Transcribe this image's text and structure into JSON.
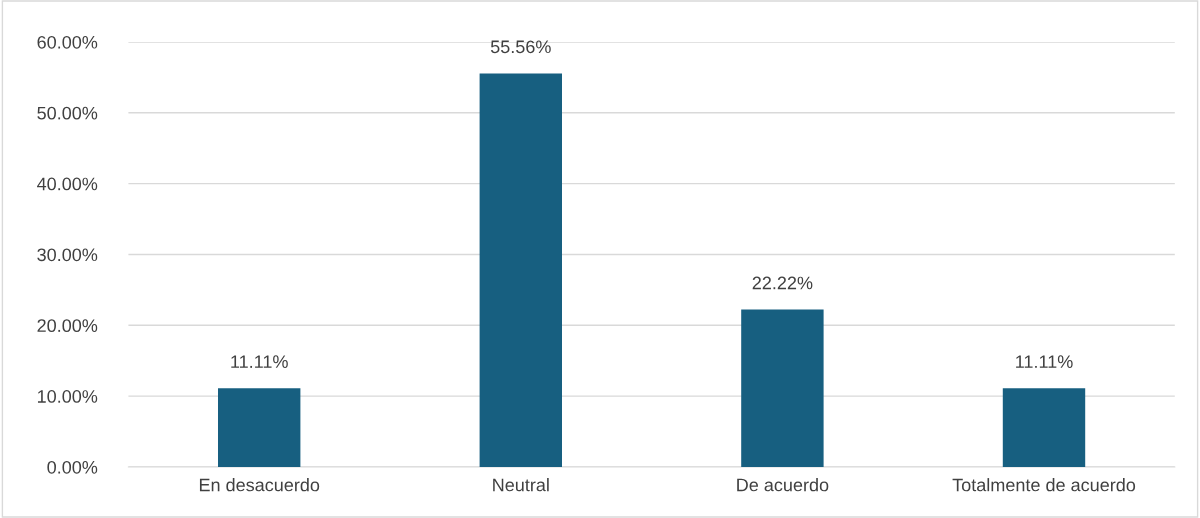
{
  "chart_data": {
    "type": "bar",
    "categories": [
      "En desacuerdo",
      "Neutral",
      "De acuerdo",
      "Totalmente de acuerdo"
    ],
    "values": [
      11.11,
      55.56,
      22.22,
      11.11
    ],
    "value_labels": [
      "11.11%",
      "55.56%",
      "22.22%",
      "11.11%"
    ],
    "color": "#175f80",
    "ylim": [
      0,
      60
    ],
    "yticks": [
      {
        "value": 0,
        "label": "0.00%"
      },
      {
        "value": 10,
        "label": "10.00%"
      },
      {
        "value": 20,
        "label": "20.00%"
      },
      {
        "value": 30,
        "label": "30.00%"
      },
      {
        "value": 40,
        "label": "40.00%"
      },
      {
        "value": 50,
        "label": "50.00%"
      },
      {
        "value": 60,
        "label": "60.00%"
      }
    ],
    "grid": "y"
  }
}
